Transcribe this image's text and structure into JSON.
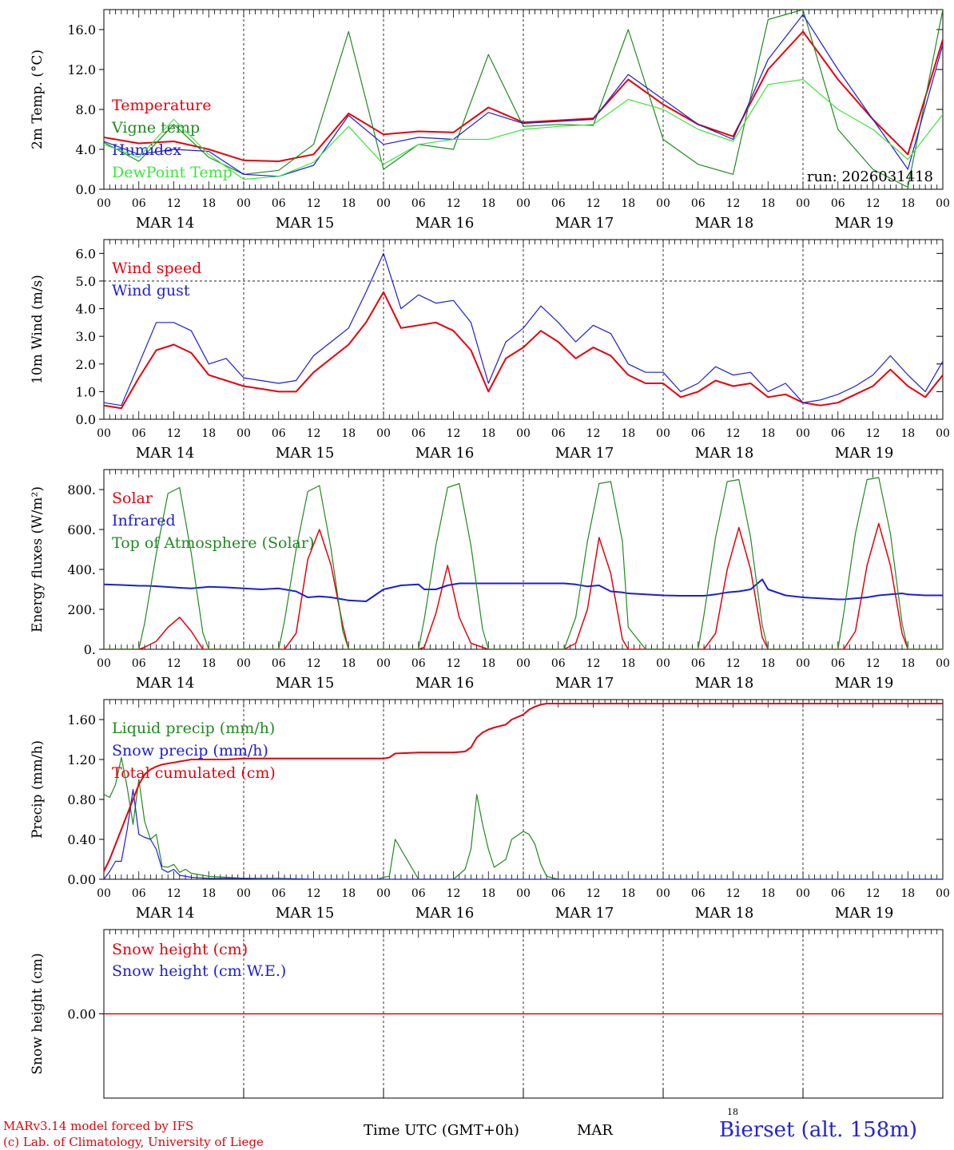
{
  "run_label": "run: 2026031418",
  "footer": {
    "model": "MARv3.14 model forced by IFS",
    "lab": "(c) Lab. of Climatology, University of Liege",
    "time_axis": "Time UTC (GMT+0h)",
    "month": "MAR",
    "small_tick": "18",
    "station": "Bierset (alt. 158m)"
  },
  "x_axis": {
    "hour_ticks": [
      "00",
      "06",
      "12",
      "18",
      "00",
      "06",
      "12",
      "18",
      "00",
      "06",
      "12",
      "18",
      "00",
      "06",
      "12",
      "18",
      "00",
      "06",
      "12",
      "18",
      "00",
      "06",
      "12",
      "18",
      "00"
    ],
    "day_labels": [
      "MAR 14",
      "MAR 15",
      "MAR 16",
      "MAR 17",
      "MAR 18",
      "MAR 19"
    ]
  },
  "colors": {
    "red": "#e8000b",
    "green": "#1f8a1f",
    "blue": "#1d1dd8",
    "light_green": "#3ce83c",
    "grid": "#000000"
  },
  "chart_data": [
    {
      "type": "line",
      "ylabel": "2m Temp. (°C)",
      "ylim": [
        0,
        18
      ],
      "yticks": [
        "0.0",
        "4.0",
        "8.0",
        "12.0",
        "16.0"
      ],
      "ytick_values": [
        0,
        4,
        8,
        12,
        16
      ],
      "hlines": [],
      "x_hours": [
        0,
        6,
        12,
        18,
        24,
        30,
        36,
        42,
        48,
        54,
        60,
        66,
        72,
        78,
        84,
        90,
        96,
        102,
        108,
        114,
        120,
        126,
        132,
        138,
        144
      ],
      "series": [
        {
          "name": "Temperature",
          "color": "red",
          "width": 2,
          "values": [
            5.2,
            4.6,
            4.8,
            4.0,
            2.9,
            2.8,
            3.5,
            7.6,
            5.5,
            5.8,
            5.7,
            8.2,
            6.7,
            6.9,
            7.1,
            11.0,
            8.5,
            6.5,
            5.3,
            12.0,
            15.8,
            11.0,
            7.0,
            3.5,
            15.0
          ]
        },
        {
          "name": "Vigne temp",
          "color": "green",
          "width": 1.2,
          "values": [
            4.7,
            2.8,
            6.5,
            3.2,
            1.5,
            1.9,
            4.5,
            15.8,
            2.0,
            4.5,
            4.0,
            13.5,
            6.3,
            6.5,
            6.4,
            16.0,
            5.0,
            2.5,
            1.5,
            17.0,
            18.0,
            6.0,
            2.0,
            0.2,
            18.0
          ]
        },
        {
          "name": "Humidex",
          "color": "blue",
          "width": 1.2,
          "values": [
            4.8,
            3.5,
            4.0,
            3.8,
            1.5,
            1.3,
            2.4,
            7.4,
            4.5,
            5.2,
            5.0,
            7.7,
            6.6,
            6.8,
            7.0,
            11.5,
            9.0,
            6.5,
            5.0,
            13.0,
            17.5,
            12.0,
            7.0,
            2.0,
            14.5
          ]
        },
        {
          "name": "DewPoint Temp",
          "color": "light_green",
          "width": 1.2,
          "values": [
            4.5,
            3.2,
            7.0,
            3.5,
            1.0,
            1.3,
            2.7,
            6.3,
            2.5,
            4.5,
            5.0,
            5.0,
            6.0,
            6.3,
            6.5,
            9.0,
            8.0,
            6.0,
            4.8,
            10.5,
            11.0,
            8.0,
            6.0,
            3.0,
            7.5
          ]
        }
      ]
    },
    {
      "type": "line",
      "ylabel": "10m Wind (m/s)",
      "ylim": [
        0,
        6.5
      ],
      "yticks": [
        "0.0",
        "1.0",
        "2.0",
        "3.0",
        "4.0",
        "5.0",
        "6.0"
      ],
      "ytick_values": [
        0,
        1,
        2,
        3,
        4,
        5,
        6
      ],
      "hlines": [
        5.0
      ],
      "x_hours": [
        0,
        3,
        6,
        9,
        12,
        15,
        18,
        21,
        24,
        27,
        30,
        33,
        36,
        39,
        42,
        45,
        48,
        51,
        54,
        57,
        60,
        63,
        66,
        69,
        72,
        75,
        78,
        81,
        84,
        87,
        90,
        93,
        96,
        99,
        102,
        105,
        108,
        111,
        114,
        117,
        120,
        123,
        126,
        129,
        132,
        135,
        138,
        141,
        144
      ],
      "series": [
        {
          "name": "Wind speed",
          "color": "red",
          "width": 2,
          "values": [
            0.5,
            0.4,
            1.5,
            2.5,
            2.7,
            2.4,
            1.6,
            1.4,
            1.2,
            1.1,
            1.0,
            1.0,
            1.7,
            2.2,
            2.7,
            3.5,
            4.6,
            3.3,
            3.4,
            3.5,
            3.2,
            2.5,
            1.0,
            2.2,
            2.6,
            3.2,
            2.8,
            2.2,
            2.6,
            2.3,
            1.6,
            1.3,
            1.3,
            0.8,
            1.0,
            1.4,
            1.2,
            1.3,
            0.8,
            0.9,
            0.6,
            0.5,
            0.6,
            0.9,
            1.2,
            1.8,
            1.2,
            0.8,
            1.6
          ]
        },
        {
          "name": "Wind gust",
          "color": "blue",
          "width": 1.2,
          "values": [
            0.6,
            0.5,
            2.0,
            3.5,
            3.5,
            3.2,
            2.0,
            2.2,
            1.5,
            1.4,
            1.3,
            1.4,
            2.3,
            2.8,
            3.3,
            4.6,
            6.0,
            4.0,
            4.5,
            4.2,
            4.3,
            3.5,
            1.3,
            2.8,
            3.3,
            4.1,
            3.5,
            2.8,
            3.4,
            3.1,
            2.0,
            1.7,
            1.7,
            1.0,
            1.3,
            1.9,
            1.6,
            1.7,
            1.0,
            1.3,
            0.6,
            0.7,
            0.9,
            1.2,
            1.6,
            2.3,
            1.6,
            1.0,
            2.1
          ]
        }
      ]
    },
    {
      "type": "line",
      "ylabel": "Energy fluxes (W/m²)",
      "ylim": [
        0,
        900
      ],
      "yticks": [
        "0.",
        "200.",
        "400.",
        "600.",
        "800."
      ],
      "ytick_values": [
        0,
        200,
        400,
        600,
        800
      ],
      "hlines": [],
      "x_hours": [
        0,
        3,
        6,
        7,
        9,
        11,
        13,
        15,
        17,
        18,
        21,
        24,
        27,
        30,
        31,
        33,
        35,
        37,
        39,
        41,
        42,
        45,
        48,
        51,
        54,
        55,
        57,
        59,
        61,
        63,
        65,
        66,
        69,
        72,
        75,
        78,
        79,
        81,
        83,
        85,
        87,
        89,
        90,
        93,
        96,
        99,
        102,
        103,
        105,
        107,
        109,
        111,
        113,
        114,
        117,
        120,
        123,
        126,
        127,
        129,
        131,
        133,
        135,
        137,
        138,
        141,
        144
      ],
      "series": [
        {
          "name": "Solar",
          "color": "red",
          "width": 1.5,
          "values": [
            0,
            0,
            0,
            10,
            40,
            110,
            160,
            90,
            0,
            0,
            0,
            0,
            0,
            0,
            0,
            80,
            450,
            600,
            420,
            120,
            0,
            0,
            0,
            0,
            0,
            10,
            180,
            420,
            160,
            30,
            10,
            0,
            0,
            0,
            0,
            0,
            0,
            30,
            200,
            560,
            380,
            50,
            0,
            0,
            0,
            0,
            0,
            0,
            80,
            400,
            610,
            400,
            60,
            0,
            0,
            0,
            0,
            0,
            0,
            90,
            420,
            630,
            420,
            80,
            0,
            0,
            0
          ]
        },
        {
          "name": "Infrared",
          "color": "blue",
          "width": 2,
          "values": [
            325,
            322,
            318,
            318,
            316,
            312,
            308,
            305,
            310,
            313,
            310,
            305,
            300,
            305,
            300,
            290,
            260,
            265,
            260,
            250,
            245,
            240,
            300,
            320,
            325,
            300,
            300,
            320,
            330,
            330,
            330,
            330,
            330,
            330,
            330,
            330,
            330,
            325,
            315,
            320,
            290,
            285,
            280,
            275,
            270,
            268,
            268,
            268,
            275,
            285,
            290,
            300,
            350,
            300,
            270,
            260,
            255,
            250,
            250,
            255,
            260,
            270,
            275,
            280,
            275,
            270,
            270
          ]
        },
        {
          "name": "Top of Atmosphere (Solar)",
          "color": "green",
          "width": 1.2,
          "values": [
            0,
            0,
            0,
            130,
            480,
            780,
            810,
            480,
            80,
            0,
            0,
            0,
            0,
            0,
            140,
            500,
            790,
            820,
            500,
            90,
            0,
            0,
            0,
            0,
            0,
            150,
            520,
            810,
            830,
            520,
            100,
            0,
            0,
            0,
            0,
            0,
            0,
            160,
            540,
            830,
            840,
            540,
            110,
            0,
            0,
            0,
            0,
            170,
            560,
            840,
            850,
            560,
            120,
            0,
            0,
            0,
            0,
            0,
            180,
            580,
            850,
            860,
            580,
            130,
            0,
            0,
            0
          ]
        }
      ]
    },
    {
      "type": "line",
      "ylabel": "Precip (mm/h)",
      "ylim": [
        0,
        1.8
      ],
      "yticks": [
        "0.00",
        "0.40",
        "0.80",
        "1.20",
        "1.60"
      ],
      "ytick_values": [
        0,
        0.4,
        0.8,
        1.2,
        1.6
      ],
      "hlines": [],
      "x_hours": [
        0,
        1,
        2,
        3,
        4,
        5,
        6,
        7,
        8,
        9,
        10,
        11,
        12,
        13,
        14,
        15,
        18,
        21,
        24,
        30,
        36,
        42,
        45,
        47,
        48,
        49,
        50,
        54,
        60,
        62,
        63,
        64,
        65,
        66,
        67,
        69,
        70,
        72,
        73,
        74,
        75,
        76,
        78,
        81,
        84,
        90,
        96,
        102,
        108,
        114,
        120,
        126,
        132,
        138,
        144
      ],
      "series": [
        {
          "name": "Liquid precip (mm/h)",
          "color": "green",
          "width": 1.2,
          "values": [
            0.85,
            0.82,
            0.95,
            1.22,
            0.92,
            0.55,
            1.0,
            0.58,
            0.4,
            0.45,
            0.13,
            0.12,
            0.15,
            0.07,
            0.1,
            0.06,
            0.03,
            0.02,
            0.01,
            0.0,
            0.0,
            0.0,
            0.0,
            0.0,
            0.02,
            0.03,
            0.4,
            0.0,
            0.0,
            0.1,
            0.3,
            0.85,
            0.55,
            0.3,
            0.12,
            0.2,
            0.4,
            0.48,
            0.45,
            0.35,
            0.15,
            0.03,
            0.0,
            0.0,
            0.0,
            0.0,
            0.0,
            0.0,
            0.0,
            0.0,
            0.0,
            0.0,
            0.0,
            0.0,
            0.0
          ]
        },
        {
          "name": "Snow precip (mm/h)",
          "color": "blue",
          "width": 1.2,
          "values": [
            0.0,
            0.08,
            0.18,
            0.18,
            0.5,
            0.9,
            0.45,
            0.42,
            0.4,
            0.3,
            0.1,
            0.07,
            0.1,
            0.04,
            0.03,
            0.02,
            0.01,
            0.01,
            0.01,
            0.01,
            0.0,
            0.0,
            0.0,
            0.0,
            0.0,
            0.0,
            0.0,
            0.0,
            0.0,
            0.0,
            0.0,
            0.0,
            0.0,
            0.0,
            0.0,
            0.0,
            0.0,
            0.0,
            0.0,
            0.0,
            0.0,
            0.0,
            0.0,
            0.0,
            0.0,
            0.0,
            0.0,
            0.0,
            0.0,
            0.0,
            0.0,
            0.0,
            0.0,
            0.0,
            0.0
          ]
        },
        {
          "name": "Total cumulated (cm)",
          "color": "red",
          "width": 2,
          "values": [
            0.08,
            0.2,
            0.35,
            0.5,
            0.65,
            0.8,
            0.95,
            1.05,
            1.1,
            1.13,
            1.15,
            1.16,
            1.17,
            1.18,
            1.19,
            1.2,
            1.2,
            1.2,
            1.21,
            1.21,
            1.21,
            1.21,
            1.21,
            1.21,
            1.21,
            1.22,
            1.26,
            1.27,
            1.27,
            1.28,
            1.32,
            1.42,
            1.47,
            1.5,
            1.52,
            1.55,
            1.6,
            1.65,
            1.7,
            1.73,
            1.75,
            1.76,
            1.76,
            1.76,
            1.76,
            1.76,
            1.76,
            1.76,
            1.76,
            1.76,
            1.76,
            1.76,
            1.76,
            1.76,
            1.76
          ]
        }
      ]
    },
    {
      "type": "line",
      "ylabel": "Snow height (cm)",
      "ylim": [
        -1,
        1
      ],
      "yticks": [
        "0.00"
      ],
      "ytick_values": [
        0
      ],
      "hlines": [],
      "no_bottom_ticks": true,
      "x_hours": [
        0,
        144
      ],
      "series": [
        {
          "name": "Snow height (cm)",
          "color": "red",
          "width": 1.5,
          "values": [
            0,
            0
          ]
        },
        {
          "name": "Snow height (cm W.E.)",
          "color": "blue",
          "width": 1.2,
          "values": null
        }
      ]
    }
  ]
}
